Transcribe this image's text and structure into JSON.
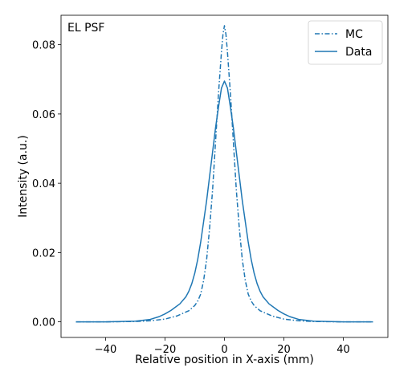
{
  "chart_data": {
    "type": "line",
    "title": "",
    "annotation": "EL PSF",
    "xlabel": "Relative position in X-axis (mm)",
    "ylabel": "Intensity (a.u.)",
    "xlim": [
      -55,
      55
    ],
    "ylim": [
      -0.0045,
      0.0885
    ],
    "x_ticks": [
      -40,
      -20,
      0,
      20,
      40
    ],
    "x_tick_labels": [
      "−40",
      "−20",
      "0",
      "20",
      "40"
    ],
    "y_ticks": [
      0.0,
      0.02,
      0.04,
      0.06,
      0.08
    ],
    "y_tick_labels": [
      "0.00",
      "0.02",
      "0.04",
      "0.06",
      "0.08"
    ],
    "grid": false,
    "legend_position": "top-right",
    "color": "#1f77b4",
    "series": [
      {
        "name": "MC",
        "style": "dashdot",
        "points": [
          [
            -50,
            0.0
          ],
          [
            -40,
            0.0
          ],
          [
            -30,
            0.0001
          ],
          [
            -25,
            0.0003
          ],
          [
            -20,
            0.0008
          ],
          [
            -16,
            0.0017
          ],
          [
            -12,
            0.0032
          ],
          [
            -10,
            0.0047
          ],
          [
            -9,
            0.006
          ],
          [
            -8,
            0.008
          ],
          [
            -7,
            0.012
          ],
          [
            -6,
            0.018
          ],
          [
            -5,
            0.027
          ],
          [
            -4,
            0.038
          ],
          [
            -3,
            0.052
          ],
          [
            -2,
            0.066
          ],
          [
            -1,
            0.078
          ],
          [
            -0.5,
            0.083
          ],
          [
            0,
            0.0855
          ],
          [
            0.5,
            0.083
          ],
          [
            1,
            0.078
          ],
          [
            2,
            0.066
          ],
          [
            3,
            0.052
          ],
          [
            4,
            0.038
          ],
          [
            5,
            0.027
          ],
          [
            6,
            0.018
          ],
          [
            7,
            0.012
          ],
          [
            8,
            0.008
          ],
          [
            9,
            0.006
          ],
          [
            10,
            0.0047
          ],
          [
            12,
            0.0032
          ],
          [
            16,
            0.0017
          ],
          [
            20,
            0.0008
          ],
          [
            25,
            0.0003
          ],
          [
            30,
            0.0001
          ],
          [
            40,
            0.0
          ],
          [
            50,
            0.0
          ]
        ]
      },
      {
        "name": "Data",
        "style": "solid",
        "points": [
          [
            -50,
            0.0
          ],
          [
            -40,
            0.0
          ],
          [
            -30,
            0.0002
          ],
          [
            -25,
            0.0007
          ],
          [
            -22,
            0.0015
          ],
          [
            -20,
            0.0023
          ],
          [
            -18,
            0.0033
          ],
          [
            -15,
            0.0052
          ],
          [
            -13,
            0.0072
          ],
          [
            -12,
            0.0088
          ],
          [
            -11,
            0.011
          ],
          [
            -10,
            0.014
          ],
          [
            -9,
            0.018
          ],
          [
            -8,
            0.023
          ],
          [
            -7,
            0.029
          ],
          [
            -6,
            0.035
          ],
          [
            -5,
            0.042
          ],
          [
            -4,
            0.049
          ],
          [
            -3,
            0.056
          ],
          [
            -2,
            0.062
          ],
          [
            -1,
            0.0675
          ],
          [
            0,
            0.0695
          ],
          [
            1,
            0.0675
          ],
          [
            2,
            0.062
          ],
          [
            3,
            0.056
          ],
          [
            4,
            0.049
          ],
          [
            5,
            0.042
          ],
          [
            6,
            0.035
          ],
          [
            7,
            0.029
          ],
          [
            8,
            0.023
          ],
          [
            9,
            0.018
          ],
          [
            10,
            0.014
          ],
          [
            11,
            0.011
          ],
          [
            12,
            0.0088
          ],
          [
            13,
            0.0072
          ],
          [
            15,
            0.0052
          ],
          [
            18,
            0.0033
          ],
          [
            20,
            0.0023
          ],
          [
            22,
            0.0015
          ],
          [
            25,
            0.0007
          ],
          [
            30,
            0.0002
          ],
          [
            40,
            0.0
          ],
          [
            50,
            0.0
          ]
        ]
      }
    ]
  }
}
